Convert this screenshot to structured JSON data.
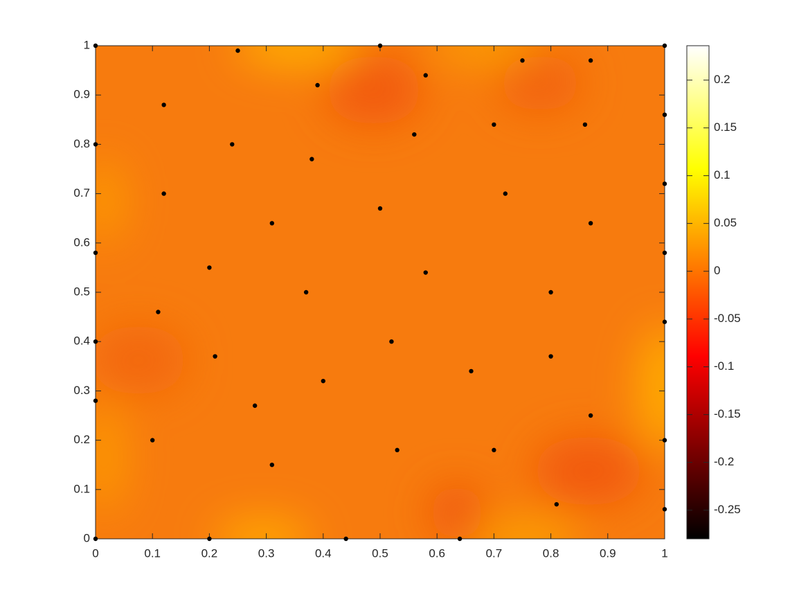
{
  "chart_data": {
    "type": "scatter",
    "x": [
      0,
      0.25,
      0.5,
      1,
      0.58,
      0.75,
      0.87,
      0.39,
      0.12,
      1,
      0.7,
      0.86,
      0.56,
      0,
      0.24,
      0.38,
      1,
      0.12,
      0.72,
      0.5,
      0.87,
      0.31,
      0,
      1,
      0.2,
      0.58,
      0.37,
      0.8,
      0.11,
      1,
      0,
      0.52,
      0.21,
      0.8,
      0.66,
      0.4,
      0,
      0.28,
      0.87,
      0.1,
      1,
      0.53,
      0.7,
      0.31,
      0.81,
      1,
      0,
      0.2,
      0.44,
      0.64
    ],
    "y": [
      1,
      0.99,
      1,
      1,
      0.94,
      0.97,
      0.97,
      0.92,
      0.88,
      0.86,
      0.84,
      0.84,
      0.82,
      0.8,
      0.8,
      0.77,
      0.72,
      0.7,
      0.7,
      0.67,
      0.64,
      0.64,
      0.58,
      0.58,
      0.55,
      0.54,
      0.5,
      0.5,
      0.46,
      0.44,
      0.4,
      0.4,
      0.37,
      0.37,
      0.34,
      0.32,
      0.28,
      0.27,
      0.25,
      0.2,
      0.2,
      0.18,
      0.18,
      0.15,
      0.07,
      0.06,
      0,
      0,
      0,
      0
    ],
    "color": "#000000",
    "xlim": [
      0,
      1
    ],
    "ylim": [
      0,
      1
    ],
    "xticks": [
      0,
      0.1,
      0.2,
      0.3,
      0.4,
      0.5,
      0.6,
      0.7,
      0.8,
      0.9,
      1
    ],
    "yticks": [
      0,
      0.1,
      0.2,
      0.3,
      0.4,
      0.5,
      0.6,
      0.7,
      0.8,
      0.9,
      1
    ],
    "colorbar": {
      "clim": [
        -0.28,
        0.236
      ],
      "ticks": [
        -0.25,
        -0.2,
        -0.15,
        -0.1,
        -0.05,
        0,
        0.05,
        0.1,
        0.15,
        0.2
      ]
    }
  }
}
